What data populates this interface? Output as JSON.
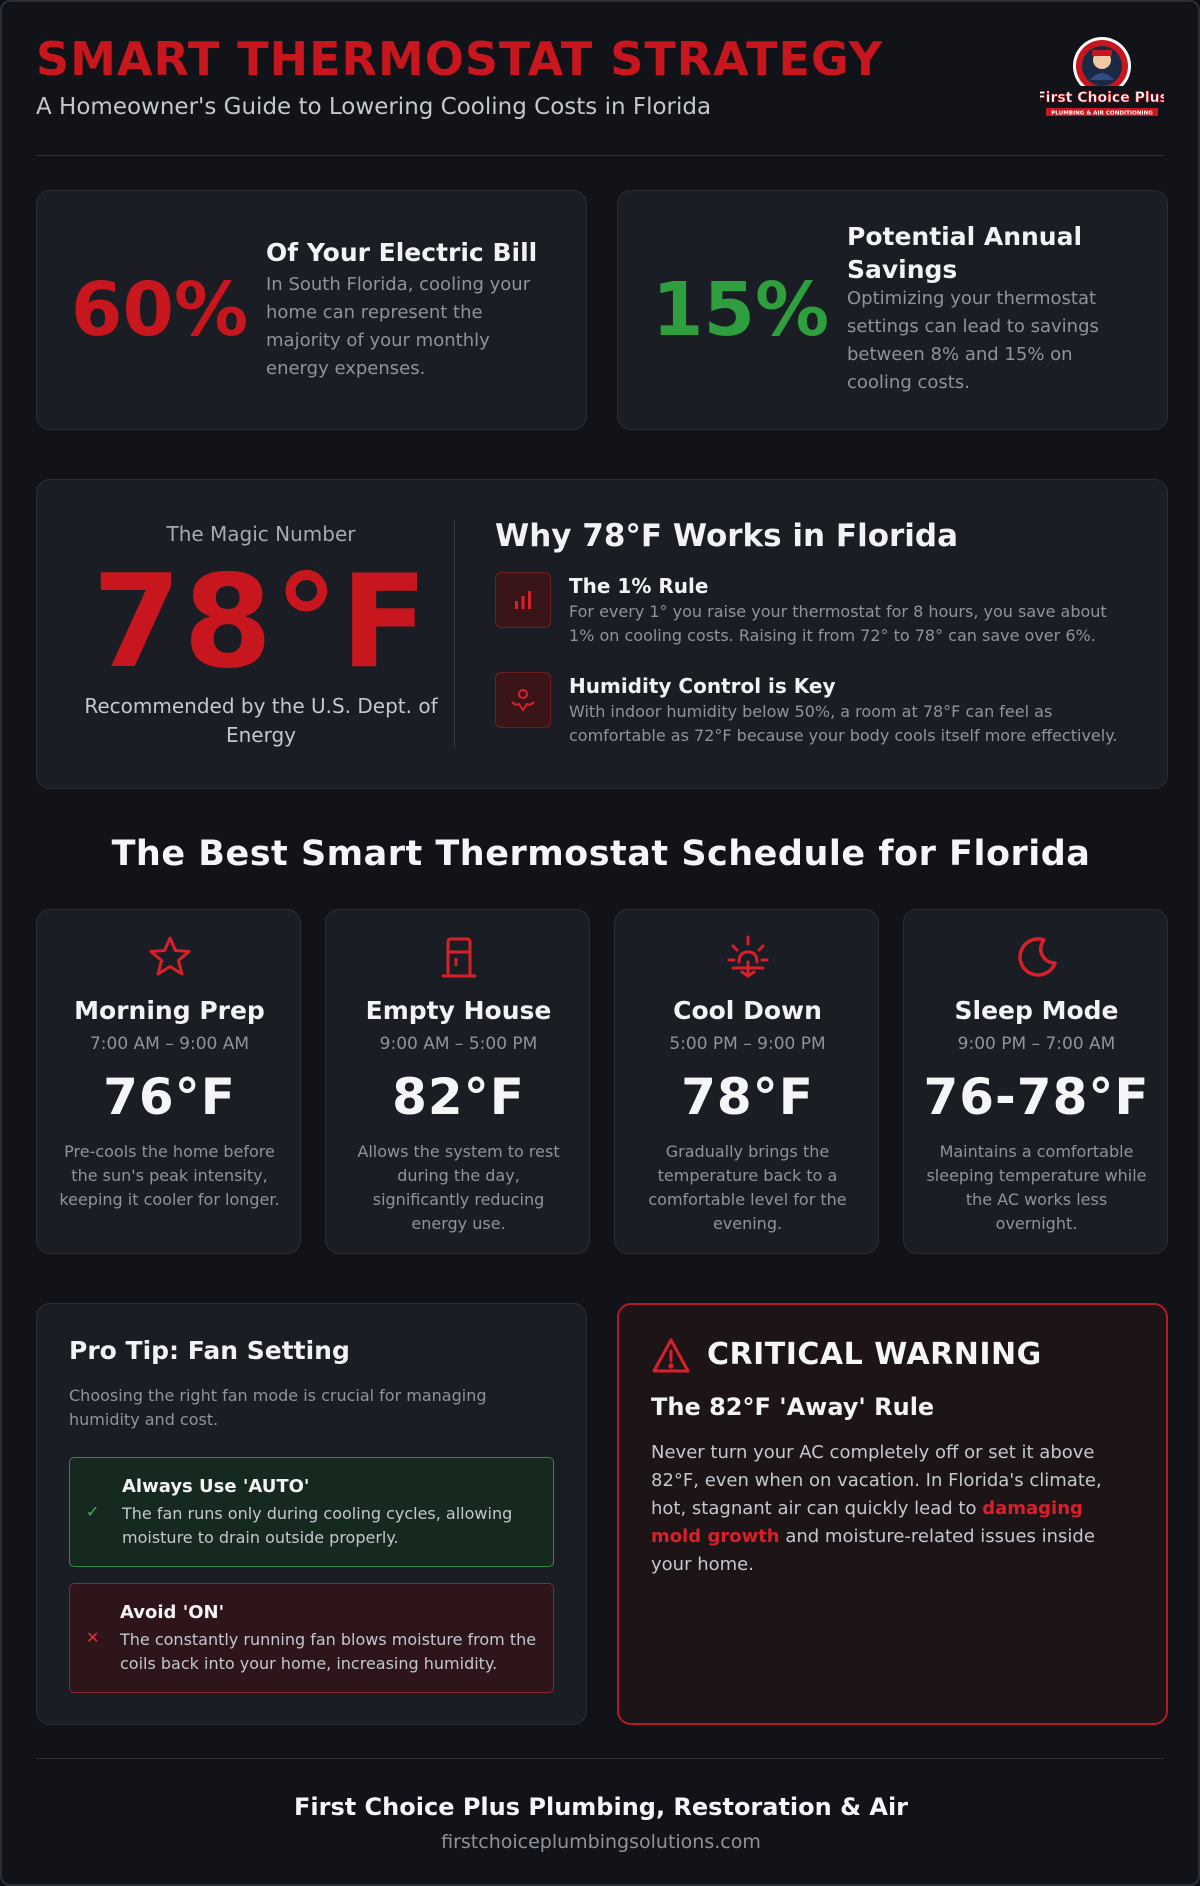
{
  "header": {
    "title": "SMART THERMOSTAT STRATEGY",
    "subtitle": "A Homeowner's Guide to Lowering Cooling Costs in Florida",
    "logo_text": "First Choice Plus",
    "logo_tagline": "PLUMBING & AIR CONDITIONING"
  },
  "stats": [
    {
      "value": "60%",
      "title": "Of Your Electric Bill",
      "text": "In South Florida, cooling your home can represent the majority of your monthly energy expenses.",
      "color": "#c8161e"
    },
    {
      "value": "15%",
      "title": "Potential Annual Savings",
      "text": "Optimizing your thermostat settings can lead to savings between 8% and 15% on cooling costs.",
      "color": "#2e9e3e"
    }
  ],
  "magic": {
    "label": "The Magic Number",
    "value": "78°F",
    "sub": "Recommended by the U.S. Dept. of Energy"
  },
  "why": {
    "title": "Why 78°F Works in Florida",
    "features": [
      {
        "icon": "bar-chart-icon",
        "title": "The 1% Rule",
        "text": "For every 1° you raise your thermostat for 8 hours, you save about 1% on cooling costs. Raising it from 72° to 78° can save over 6%."
      },
      {
        "icon": "person-comfort-icon",
        "title": "Humidity Control is Key",
        "text": "With indoor humidity below 50%, a room at 78°F can feel as comfortable as 72°F because your body cools itself more effectively."
      }
    ]
  },
  "schedule": {
    "title": "The Best Smart Thermostat Schedule for Florida",
    "items": [
      {
        "icon": "star-icon",
        "name": "Morning Prep",
        "time": "7:00 AM – 9:00 AM",
        "temp": "76°F",
        "desc": "Pre-cools the home before the sun's peak intensity, keeping it cooler for longer."
      },
      {
        "icon": "door-icon",
        "name": "Empty House",
        "time": "9:00 AM – 5:00 PM",
        "temp": "82°F",
        "desc": "Allows the system to rest during the day, significantly reducing energy use."
      },
      {
        "icon": "sunset-icon",
        "name": "Cool Down",
        "time": "5:00 PM – 9:00 PM",
        "temp": "78°F",
        "desc": "Gradually brings the temperature back to a comfortable level for the evening."
      },
      {
        "icon": "moon-icon",
        "name": "Sleep Mode",
        "time": "9:00 PM – 7:00 AM",
        "temp": "76-78°F",
        "desc": "Maintains a comfortable sleeping temperature while the AC works less overnight."
      }
    ]
  },
  "tip": {
    "title": "Pro Tip: Fan Setting",
    "text": "Choosing the right fan mode is crucial for managing humidity and cost.",
    "good": {
      "mark": "✓",
      "title": "Always Use 'AUTO'",
      "text": "The fan runs only during cooling cycles, allowing moisture to drain outside properly."
    },
    "bad": {
      "mark": "✕",
      "title": "Avoid 'ON'",
      "text": "The constantly running fan blows moisture from the coils back into your home, increasing humidity."
    }
  },
  "warning": {
    "title": "CRITICAL WARNING",
    "subtitle": "The 82°F 'Away' Rule",
    "text_before": "Never turn your AC completely off or set it above 82°F, even when on vacation. In Florida's climate, hot, stagnant air can quickly lead to ",
    "highlight": "damaging mold growth",
    "text_after": " and moisture-related issues inside your home."
  },
  "footer": {
    "name": "First Choice Plus Plumbing, Restoration & Air",
    "url": "firstchoiceplumbingsolutions.com"
  }
}
